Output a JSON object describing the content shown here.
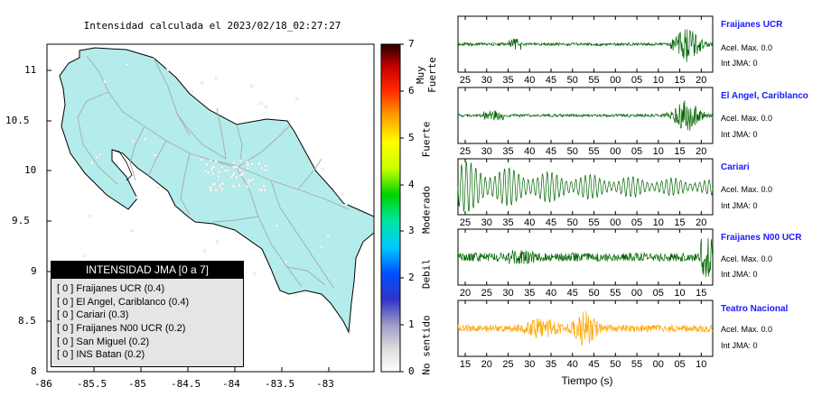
{
  "map": {
    "title": "Intensidad calculada el 2023/02/18_02:27:27",
    "x_ticks": [
      "-86",
      "-85.5",
      "-85",
      "-84.5",
      "-84",
      "-83.5",
      "-83"
    ],
    "y_ticks": [
      "11",
      "10.5",
      "10",
      "9.5",
      "9",
      "8.5",
      "8"
    ],
    "x_range": [
      -86,
      -82.5
    ],
    "y_range": [
      8,
      11.25
    ],
    "land_color": "#b4ecec"
  },
  "legend": {
    "title": "INTENSIDAD JMA [0 a 7]",
    "items": [
      "[ 0 ]  Fraijanes UCR (0.4)",
      "[ 0 ]  El Angel, Cariblanco (0.4)",
      "[ 0 ]  Cariari (0.3)",
      "[ 0 ]  Fraijanes N00 UCR (0.2)",
      "[ 0 ]  San Miguel (0.2)",
      "[ 0 ]  INS Batan (0.2)"
    ]
  },
  "colorbar": {
    "ticks": [
      "0",
      "1",
      "2",
      "3",
      "4",
      "5",
      "6",
      "7"
    ],
    "categories": [
      "No sentido",
      "Debil",
      "Moderado",
      "Fuerte",
      "Muy Fuerte"
    ]
  },
  "stations": [
    {
      "name": "Fraijanes UCR",
      "acel": "Acel. Max. 0.0",
      "int": "Int JMA: 0",
      "ticks": [
        "25",
        "30",
        "35",
        "40",
        "45",
        "50",
        "55",
        "00",
        "05",
        "10",
        "15",
        "20"
      ],
      "color": "#006400"
    },
    {
      "name": "El Angel, Cariblanco",
      "acel": "Acel. Max. 0.0",
      "int": "Int JMA: 0",
      "ticks": [
        "25",
        "30",
        "35",
        "40",
        "45",
        "50",
        "55",
        "00",
        "05",
        "10",
        "15",
        "20"
      ],
      "color": "#006400"
    },
    {
      "name": "Cariari",
      "acel": "Acel. Max. 0.0",
      "int": "Int JMA: 0",
      "ticks": [
        "25",
        "30",
        "35",
        "40",
        "45",
        "50",
        "55",
        "00",
        "05",
        "10",
        "15",
        "20"
      ],
      "color": "#006400"
    },
    {
      "name": "Fraijanes N00 UCR",
      "acel": "Acel. Max. 0.0",
      "int": "Int JMA: 0",
      "ticks": [
        "20",
        "25",
        "30",
        "35",
        "40",
        "45",
        "50",
        "55",
        "00",
        "05",
        "10",
        "15"
      ],
      "color": "#006400"
    },
    {
      "name": "Teatro Nacional",
      "acel": "Acel. Max. 0.0",
      "int": "Int JMA: 0",
      "ticks": [
        "15",
        "20",
        "25",
        "30",
        "35",
        "40",
        "45",
        "50",
        "55",
        "00",
        "05",
        "10"
      ],
      "color": "#ffa500"
    }
  ],
  "time_label": "Tiempo (s)"
}
